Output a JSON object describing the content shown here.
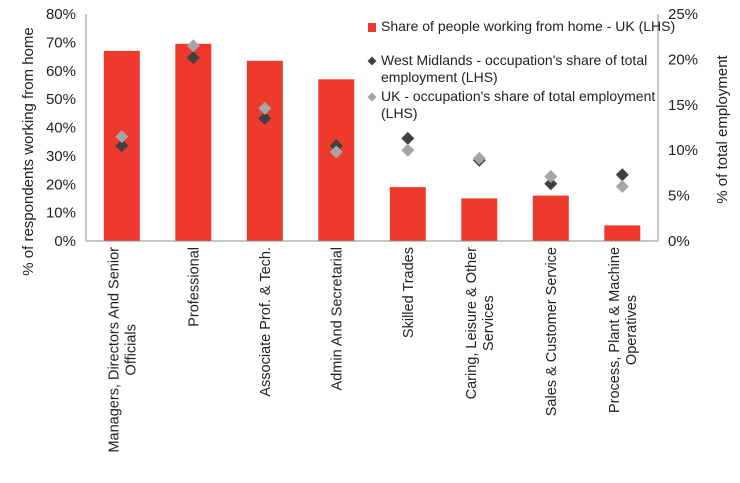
{
  "chart_data": {
    "type": "bar",
    "categories": [
      "Managers, Directors And Senior Officials",
      "Professional",
      "Associate Prof. & Tech.",
      "Admin And Secretarial",
      "Skilled Trades",
      "Caring, Leisure & Other Services",
      "Sales & Customer Service",
      "Process, Plant & Machine Operatives"
    ],
    "category_lines": [
      [
        "Managers, Directors And Senior",
        "Officials"
      ],
      [
        "Professional"
      ],
      [
        "Associate Prof. & Tech."
      ],
      [
        "Admin And Secretarial"
      ],
      [
        "Skilled Trades"
      ],
      [
        "Caring, Leisure & Other",
        "Services"
      ],
      [
        "Sales & Customer Service"
      ],
      [
        "Process, Plant & Machine",
        "Operatives"
      ]
    ],
    "series": [
      {
        "name": "Share of people working from home - UK (LHS)",
        "kind": "bar",
        "axis": "left",
        "color": "#EE3A2C",
        "values": [
          67,
          69.5,
          63.5,
          57,
          19,
          15,
          16,
          5.5
        ]
      },
      {
        "name": "West Midlands - occupation's share of total employment (LHS)",
        "name_lines": [
          "West Midlands - occupation's share of total",
          "employment (LHS)"
        ],
        "kind": "scatter",
        "axis": "right",
        "color": "#404040",
        "values": [
          10.5,
          20.2,
          13.5,
          10.5,
          11.3,
          8.9,
          6.3,
          7.3
        ]
      },
      {
        "name": "UK - occupation's share of total employment (LHS)",
        "name_lines": [
          "UK - occupation's share of total employment",
          "(LHS)"
        ],
        "kind": "scatter",
        "axis": "right",
        "color": "#A6A6A6",
        "values": [
          11.5,
          21.5,
          14.6,
          9.8,
          10.0,
          9.1,
          7.1,
          6.0
        ]
      }
    ],
    "ylabel": "% of respondents working from home",
    "y2label": "% of total employment",
    "ylim": [
      0,
      80
    ],
    "yticks": [
      "0%",
      "10%",
      "20%",
      "30%",
      "40%",
      "50%",
      "60%",
      "70%",
      "80%"
    ],
    "y2lim": [
      0,
      25
    ],
    "y2ticks": [
      "0%",
      "5%",
      "10%",
      "15%",
      "20%",
      "25%"
    ],
    "grid": false,
    "legend_position": "top-right"
  }
}
